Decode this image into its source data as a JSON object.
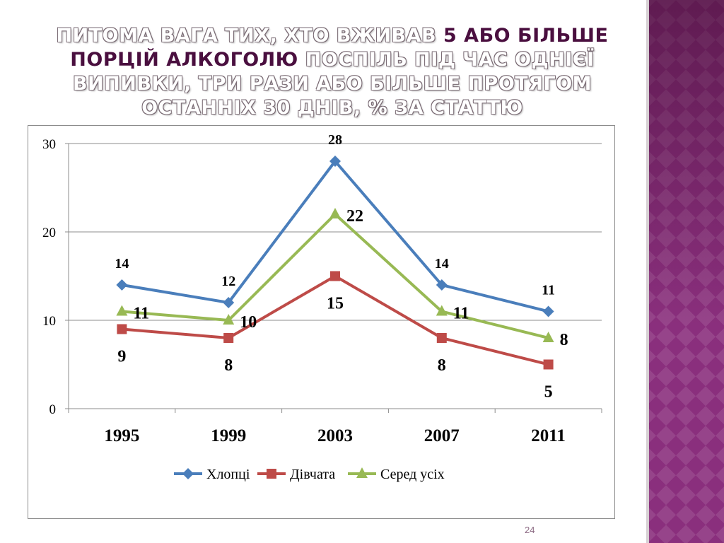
{
  "slide": {
    "title_parts": [
      {
        "text": "ПИТОМА ВАГА ТИХ, ХТО ВЖИВАВ ",
        "highlight": false
      },
      {
        "text": "5 АБО БІЛЬШЕ ПОРЦІЙ АЛКОГОЛЮ",
        "highlight": true
      },
      {
        "text": " ПОСПІЛЬ ПІД ЧАС ОДНІЄЇ ВИПИВКИ, ТРИ РАЗИ АБО БІЛЬШЕ ПРОТЯГОМ ОСТАННІХ 30 ДНІВ, % ЗА СТАТТЮ",
        "highlight": false
      }
    ],
    "page_number": "24"
  },
  "colors": {
    "title_text": "#ffffff",
    "title_highlight": "#4a0f3f",
    "sidebar": "#8a2f7d"
  },
  "chart_data": {
    "type": "line",
    "categories": [
      "1995",
      "1999",
      "2003",
      "2007",
      "2011"
    ],
    "ylim": [
      0,
      30
    ],
    "yticks": [
      0,
      10,
      20,
      30
    ],
    "grid": true,
    "legend_position": "bottom",
    "series": [
      {
        "name": "Хлопці",
        "values": [
          14,
          12,
          28,
          14,
          11
        ],
        "color": "#4a7ebb",
        "marker": "diamond",
        "labels": [
          "14",
          "12",
          "28",
          "14",
          "11"
        ],
        "label_position": "above"
      },
      {
        "name": "Дівчата",
        "values": [
          9,
          8,
          15,
          8,
          5
        ],
        "color": "#be4b48",
        "marker": "square",
        "labels": [
          "9",
          "8",
          "15",
          "8",
          "5"
        ],
        "label_position": "below"
      },
      {
        "name": "Серед усіх",
        "values": [
          11,
          10,
          22,
          11,
          8
        ],
        "color": "#98b954",
        "marker": "triangle",
        "labels": [
          "11",
          "10",
          "22",
          "11",
          "8"
        ],
        "label_position": "right"
      }
    ]
  }
}
